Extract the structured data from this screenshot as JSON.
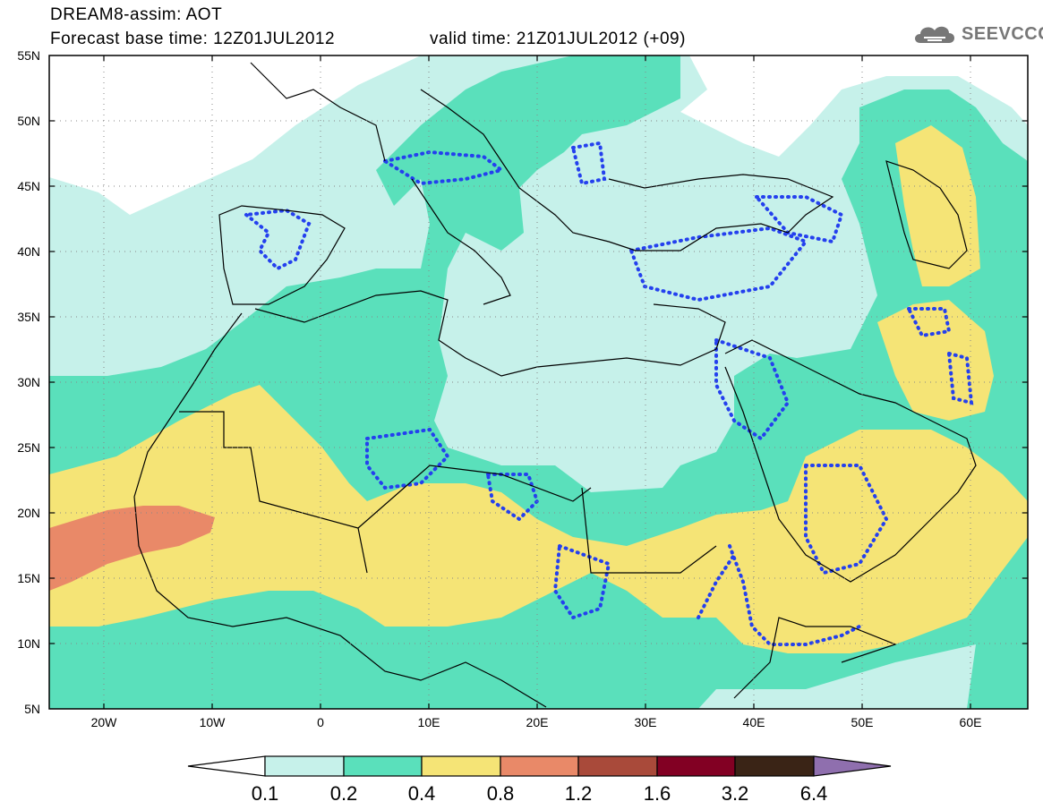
{
  "header": {
    "title": "DREAM8-assim: AOT",
    "base_time": "Forecast base time: 12Z01JUL2012",
    "valid_time": "valid time: 21Z01JUL2012 (+09)",
    "logo_text": "SEEVCCC",
    "logo_icon": "cloud-icon"
  },
  "map": {
    "lon_labels": [
      "20W",
      "10W",
      "0",
      "10E",
      "20E",
      "30E",
      "40E",
      "50E",
      "60E"
    ],
    "lat_labels": [
      "55N",
      "50N",
      "45N",
      "40N",
      "35N",
      "30N",
      "25N",
      "20N",
      "15N",
      "10N",
      "5N"
    ],
    "lon_range": [
      -25,
      65
    ],
    "lat_range": [
      5,
      55
    ]
  },
  "colorbar": {
    "labels": [
      "0.1",
      "0.2",
      "0.4",
      "0.8",
      "1.2",
      "1.6",
      "3.2",
      "6.4"
    ],
    "colors": [
      "#ffffff",
      "#c6f1ea",
      "#5ae0bb",
      "#f5e476",
      "#e98968",
      "#a94a3a",
      "#820023",
      "#3a2416",
      "#8f6fae"
    ]
  },
  "colors": {
    "level1": "#c6f1ea",
    "level2": "#5ae0bb",
    "level3": "#f5e476",
    "level4": "#e98968",
    "contour": "#2440ee"
  }
}
